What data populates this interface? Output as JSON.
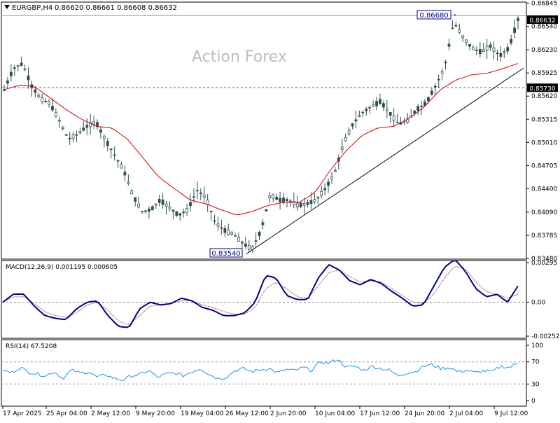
{
  "header": {
    "symbol": "EURGBP,H4",
    "ohlc": "0.86620 0.86661 0.86608 0.86632"
  },
  "watermark": "Action Forex",
  "price_panel": {
    "current_price_label": "0.86632",
    "high_label": "0.86680",
    "low_label": "0.83540",
    "level_label": "0.85730"
  },
  "macd_panel": {
    "title": "MACD(12,26,9) 0.001195 0.000605"
  },
  "rsi_panel": {
    "title": "RSI(14) 67.5208"
  },
  "colors": {
    "candles": "#2f4f4f",
    "ma": "#d40000",
    "macd": "#00008b",
    "signal": "#b06060",
    "rsi": "#1e90ff",
    "trendline": "#000000",
    "label_border": "#000080"
  },
  "chart_data": [
    {
      "type": "candlestick",
      "name": "price",
      "ylim": [
        0.8348,
        0.8668
      ],
      "y_ticks": [
        "0.86845",
        "0.86540",
        "0.86230",
        "0.85925",
        "0.85620",
        "0.85315",
        "0.85010",
        "0.84705",
        "0.84400",
        "0.84090",
        "0.83785",
        "0.83480"
      ],
      "x_ticks": [
        "17 Apr 2025",
        "25 Apr 04:00",
        "2 May 12:00",
        "9 May 20:00",
        "19 May 04:00",
        "26 May 12:00",
        "2 Jun 20:00",
        "10 Jun 04:00",
        "17 Jun 12:00",
        "24 Jun 20:00",
        "2 Jul 04:00",
        "9 Jul 12:00"
      ],
      "close_path": [
        0.857,
        0.8598,
        0.8605,
        0.8575,
        0.8558,
        0.8552,
        0.853,
        0.8505,
        0.8512,
        0.8522,
        0.8528,
        0.8505,
        0.8485,
        0.8465,
        0.8432,
        0.841,
        0.8412,
        0.8425,
        0.8415,
        0.8405,
        0.8412,
        0.8438,
        0.8428,
        0.8395,
        0.8385,
        0.838,
        0.8368,
        0.836,
        0.8385,
        0.8432,
        0.8425,
        0.8425,
        0.8418,
        0.842,
        0.8425,
        0.844,
        0.846,
        0.85,
        0.8525,
        0.854,
        0.8548,
        0.8555,
        0.854,
        0.8525,
        0.853,
        0.8545,
        0.8553,
        0.8575,
        0.86,
        0.866,
        0.864,
        0.8625,
        0.862,
        0.8628,
        0.8615,
        0.8625,
        0.8663
      ],
      "ma_path": [
        0.857,
        0.8576,
        0.8575,
        0.856,
        0.8545,
        0.8532,
        0.8522,
        0.852,
        0.8505,
        0.848,
        0.8455,
        0.844,
        0.8425,
        0.842,
        0.8412,
        0.8405,
        0.841,
        0.8418,
        0.8422,
        0.8422,
        0.8435,
        0.8465,
        0.849,
        0.851,
        0.852,
        0.8522,
        0.8532,
        0.8548,
        0.857,
        0.8583,
        0.859,
        0.8592,
        0.8598,
        0.8605
      ],
      "annotations": {
        "high": 0.8668,
        "low": 0.8354,
        "level": 0.8573,
        "trendline_from": 0.8354,
        "trendline_to": 0.8599
      }
    },
    {
      "type": "line",
      "name": "MACD",
      "ylim": [
        -0.002529,
        0.00295
      ],
      "y_ticks": [
        "0.00295",
        "0.00",
        "-0.002529"
      ],
      "macd_path": [
        0.0,
        0.0006,
        0.0006,
        -0.0003,
        -0.001,
        -0.0012,
        -0.0013,
        -0.0005,
        0.0,
        0.0001,
        -0.001,
        -0.0018,
        -0.0019,
        -0.0005,
        0.0,
        -0.0002,
        -0.0001,
        0.0003,
        0.0001,
        -0.0004,
        -0.0006,
        -0.001,
        -0.001,
        -0.0008,
        0.0,
        0.002,
        0.0018,
        0.0005,
        0.0002,
        0.0002,
        0.0018,
        0.0028,
        0.0024,
        0.0016,
        0.0013,
        0.0017,
        0.0014,
        0.0008,
        0.0003,
        -0.0003,
        -0.0002,
        0.0012,
        0.0026,
        0.0032,
        0.0023,
        0.001,
        0.0004,
        0.0006,
        0.0,
        0.0012
      ],
      "signal_path": [
        0.0,
        0.0004,
        0.0004,
        -0.0001,
        -0.0007,
        -0.001,
        -0.0011,
        -0.0008,
        -0.0002,
        0.0,
        -0.0006,
        -0.0014,
        -0.0017,
        -0.001,
        -0.0003,
        -0.0002,
        -0.0001,
        0.0001,
        0.0001,
        -0.0002,
        -0.0004,
        -0.0007,
        -0.0009,
        -0.0009,
        -0.0004,
        0.001,
        0.0015,
        0.001,
        0.0004,
        0.0003,
        0.0012,
        0.0022,
        0.0024,
        0.0019,
        0.0015,
        0.0016,
        0.0015,
        0.001,
        0.0005,
        0.0,
        -0.0001,
        0.0006,
        0.0018,
        0.0027,
        0.0025,
        0.0015,
        0.0008,
        0.0006,
        0.0003,
        0.0006
      ]
    },
    {
      "type": "line",
      "name": "RSI",
      "ylim": [
        0,
        100
      ],
      "y_ticks": [
        "100",
        "70",
        "30",
        "0"
      ],
      "levels": [
        70,
        30
      ],
      "rsi_path": [
        55,
        50,
        60,
        52,
        48,
        45,
        52,
        40,
        55,
        50,
        52,
        42,
        47,
        40,
        37,
        45,
        47,
        55,
        42,
        48,
        50,
        45,
        52,
        58,
        48,
        40,
        42,
        54,
        58,
        52,
        56,
        58,
        50,
        56,
        54,
        60,
        55,
        70,
        68,
        75,
        60,
        62,
        55,
        62,
        58,
        55,
        45,
        50,
        52,
        62,
        65,
        58,
        60,
        52,
        55,
        50,
        54,
        52,
        62,
        60,
        68
      ]
    }
  ]
}
